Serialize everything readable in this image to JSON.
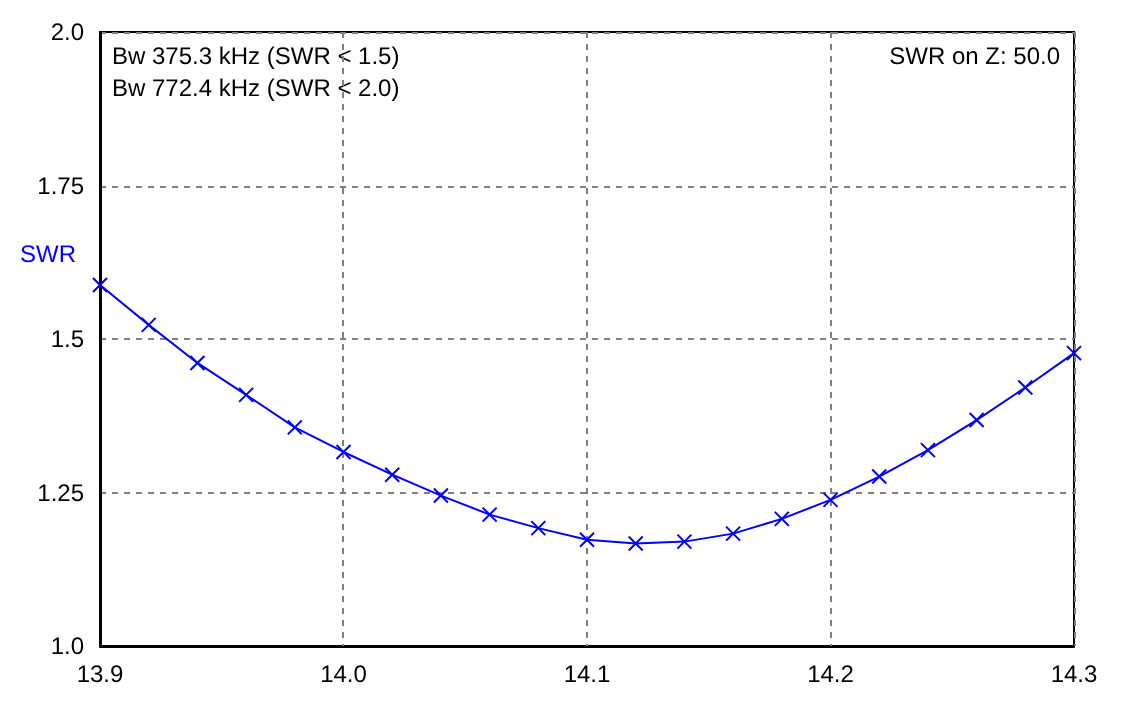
{
  "chart_data": {
    "type": "line",
    "ylabel": "SWR",
    "annotations": [
      "Bw 375.3 kHz (SWR < 1.5)",
      "Bw 772.4 kHz (SWR < 2.0)",
      "SWR on Z: 50.0"
    ],
    "x": [
      13.9,
      13.92,
      13.94,
      13.96,
      13.98,
      14.0,
      14.02,
      14.04,
      14.06,
      14.08,
      14.1,
      14.12,
      14.14,
      14.16,
      14.18,
      14.2,
      14.22,
      14.24,
      14.26,
      14.28,
      14.3
    ],
    "series": [
      {
        "color": "#0000ff",
        "values": [
          1.588,
          1.523,
          1.461,
          1.409,
          1.356,
          1.316,
          1.279,
          1.245,
          1.214,
          1.192,
          1.173,
          1.167,
          1.17,
          1.183,
          1.207,
          1.238,
          1.276,
          1.319,
          1.368,
          1.421,
          1.477
        ]
      }
    ],
    "xlim": [
      13.9,
      14.3
    ],
    "xticks": [
      13.9,
      {
        "value": 14.0,
        "label": "14.0"
      },
      14.1,
      14.2,
      14.3
    ],
    "ylim": [
      1.0,
      2.0
    ],
    "yticks": [
      {
        "value": 1.0,
        "label": "1.0"
      },
      1.25,
      {
        "value": 1.5,
        "label": "1.5"
      },
      1.75,
      {
        "value": 2.0,
        "label": "2.0"
      }
    ],
    "grid": true,
    "marker": "cross",
    "line_style": "solid"
  }
}
